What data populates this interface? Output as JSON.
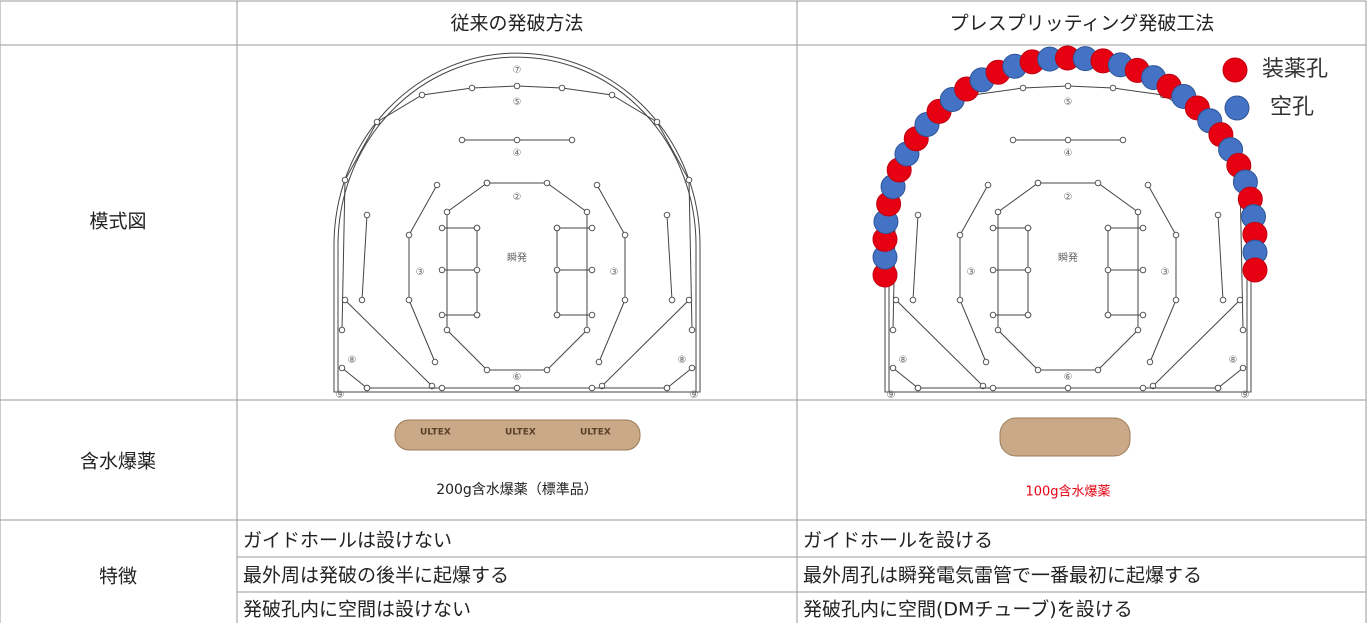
{
  "columns": [
    "従来の発破方法",
    "プレスプリッティング発破工法"
  ],
  "rows": {
    "diagram": {
      "label": "模式図",
      "conventional": {
        "labels": [
          "⑦",
          "⑤",
          "④",
          "②",
          "瞬発",
          "③",
          "③",
          "⑥",
          "⑧",
          "⑧",
          "⑨",
          "⑨"
        ]
      },
      "presplitting": {
        "labels": [
          "⑤",
          "④",
          "②",
          "瞬発",
          "③",
          "③",
          "⑥",
          "⑧",
          "⑧",
          "⑨",
          "⑨"
        ],
        "legend": [
          {
            "label": "装薬孔",
            "color": "#e60012"
          },
          {
            "label": "空孔",
            "color": "#4472c4"
          }
        ]
      }
    },
    "explosive": {
      "label": "含水爆薬",
      "cartridge_text": "ULTEX",
      "conventional_caption": "200g含水爆薬（標準品）",
      "presplitting_caption": "100g含水爆薬"
    },
    "features": {
      "label": "特徴",
      "conventional": [
        "ガイドホールは設けない",
        "最外周は発破の後半に起爆する",
        "発破孔内に空間は設けない"
      ],
      "presplitting": [
        "ガイドホールを設ける",
        "最外周孔は瞬発電気雷管で一番最初に起爆する",
        "発破孔内に空間(DMチューブ)を設ける"
      ]
    }
  }
}
